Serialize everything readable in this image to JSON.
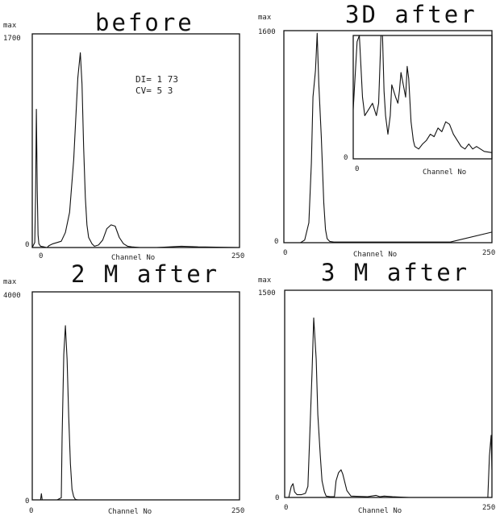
{
  "chart_data": [
    {
      "type": "line",
      "title": "before",
      "ylabel": "max",
      "xlabel": "Channel No",
      "xlim": [
        0,
        250
      ],
      "ylim": [
        0,
        1700
      ],
      "y_tick_labels": [
        "1700",
        "0"
      ],
      "x_tick_labels": [
        "0",
        "250"
      ],
      "annotations": [
        "DI= 1 73",
        "CV= 5 3"
      ],
      "series": [
        {
          "x": [
            0,
            3,
            4,
            5,
            6,
            7,
            8,
            10,
            14,
            17,
            18,
            20,
            25,
            30,
            35,
            40,
            45,
            50,
            55,
            58,
            60,
            62,
            64,
            66,
            68,
            72,
            75,
            80,
            85,
            90,
            95,
            100,
            105,
            110,
            115,
            120,
            130,
            150,
            180,
            200,
            250
          ],
          "y": [
            0,
            40,
            400,
            1100,
            450,
            100,
            30,
            10,
            5,
            0,
            0,
            15,
            30,
            40,
            50,
            120,
            280,
            700,
            1350,
            1550,
            1300,
            800,
            400,
            180,
            80,
            30,
            10,
            20,
            60,
            150,
            180,
            170,
            80,
            30,
            10,
            5,
            0,
            0,
            10,
            5,
            0
          ]
        }
      ]
    },
    {
      "type": "line",
      "title": "3D after",
      "ylabel": "max",
      "xlabel": "Channel No",
      "xlim": [
        0,
        250
      ],
      "ylim": [
        0,
        1600
      ],
      "y_tick_labels": [
        "1600",
        "0"
      ],
      "x_tick_labels": [
        "0",
        "250"
      ],
      "series": [
        {
          "x": [
            0,
            20,
            25,
            30,
            33,
            35,
            38,
            40,
            42,
            45,
            48,
            50,
            52,
            55,
            60,
            65,
            70,
            75,
            80,
            100,
            150,
            200,
            250
          ],
          "y": [
            0,
            0,
            20,
            150,
            600,
            1100,
            1300,
            1580,
            1200,
            800,
            300,
            100,
            30,
            10,
            5,
            5,
            5,
            5,
            5,
            5,
            5,
            5,
            80
          ]
        }
      ],
      "inset": {
        "xlabel": "Channel No",
        "x_tick_labels": [
          "0"
        ],
        "y_tick_labels": [
          "0"
        ],
        "x": [
          0,
          5,
          8,
          12,
          15,
          20,
          25,
          30,
          33,
          36,
          38,
          40,
          42,
          45,
          48,
          50,
          55,
          58,
          60,
          62,
          65,
          68,
          70,
          72,
          75,
          78,
          80,
          85,
          90,
          95,
          100,
          105,
          110,
          115,
          120,
          125,
          130,
          135,
          140,
          145,
          150,
          155,
          160,
          170,
          180
        ],
        "y": [
          40,
          95,
          100,
          50,
          35,
          40,
          45,
          35,
          45,
          100,
          100,
          55,
          35,
          20,
          35,
          60,
          50,
          45,
          55,
          70,
          60,
          50,
          75,
          65,
          30,
          15,
          10,
          8,
          12,
          15,
          20,
          18,
          25,
          22,
          30,
          28,
          20,
          15,
          10,
          8,
          12,
          8,
          10,
          6,
          5
        ]
      }
    },
    {
      "type": "line",
      "title": "2 M after",
      "ylabel": "max",
      "xlabel": "Channel No",
      "xlim": [
        0,
        250
      ],
      "ylim": [
        0,
        4000
      ],
      "y_tick_labels": [
        "4000",
        "0"
      ],
      "x_tick_labels": [
        "0",
        "250"
      ],
      "series": [
        {
          "x": [
            0,
            10,
            11,
            12,
            15,
            25,
            30,
            35,
            36,
            38,
            40,
            42,
            44,
            46,
            48,
            50,
            52,
            55,
            60,
            80,
            120,
            160,
            200,
            250
          ],
          "y": [
            0,
            0,
            120,
            0,
            0,
            0,
            0,
            40,
            1200,
            2800,
            3350,
            2700,
            1600,
            700,
            200,
            60,
            10,
            0,
            0,
            0,
            0,
            0,
            0,
            0
          ]
        }
      ]
    },
    {
      "type": "line",
      "title": "3 M after",
      "ylabel": "max",
      "xlabel": "Channel No",
      "xlim": [
        0,
        250
      ],
      "ylim": [
        0,
        1500
      ],
      "y_tick_labels": [
        "1500",
        "0"
      ],
      "x_tick_labels": [
        "0",
        "250"
      ],
      "series": [
        {
          "x": [
            0,
            5,
            8,
            10,
            12,
            15,
            20,
            25,
            28,
            30,
            33,
            35,
            38,
            40,
            43,
            45,
            48,
            50,
            55,
            60,
            62,
            65,
            68,
            70,
            75,
            80,
            100,
            110,
            115,
            120,
            130,
            150,
            200,
            245,
            247,
            249,
            250
          ],
          "y": [
            0,
            0,
            80,
            100,
            40,
            20,
            20,
            30,
            80,
            400,
            900,
            1300,
            1000,
            600,
            300,
            120,
            40,
            10,
            5,
            5,
            120,
            180,
            200,
            170,
            50,
            10,
            5,
            15,
            5,
            10,
            5,
            0,
            0,
            0,
            300,
            450,
            200
          ]
        }
      ]
    }
  ]
}
